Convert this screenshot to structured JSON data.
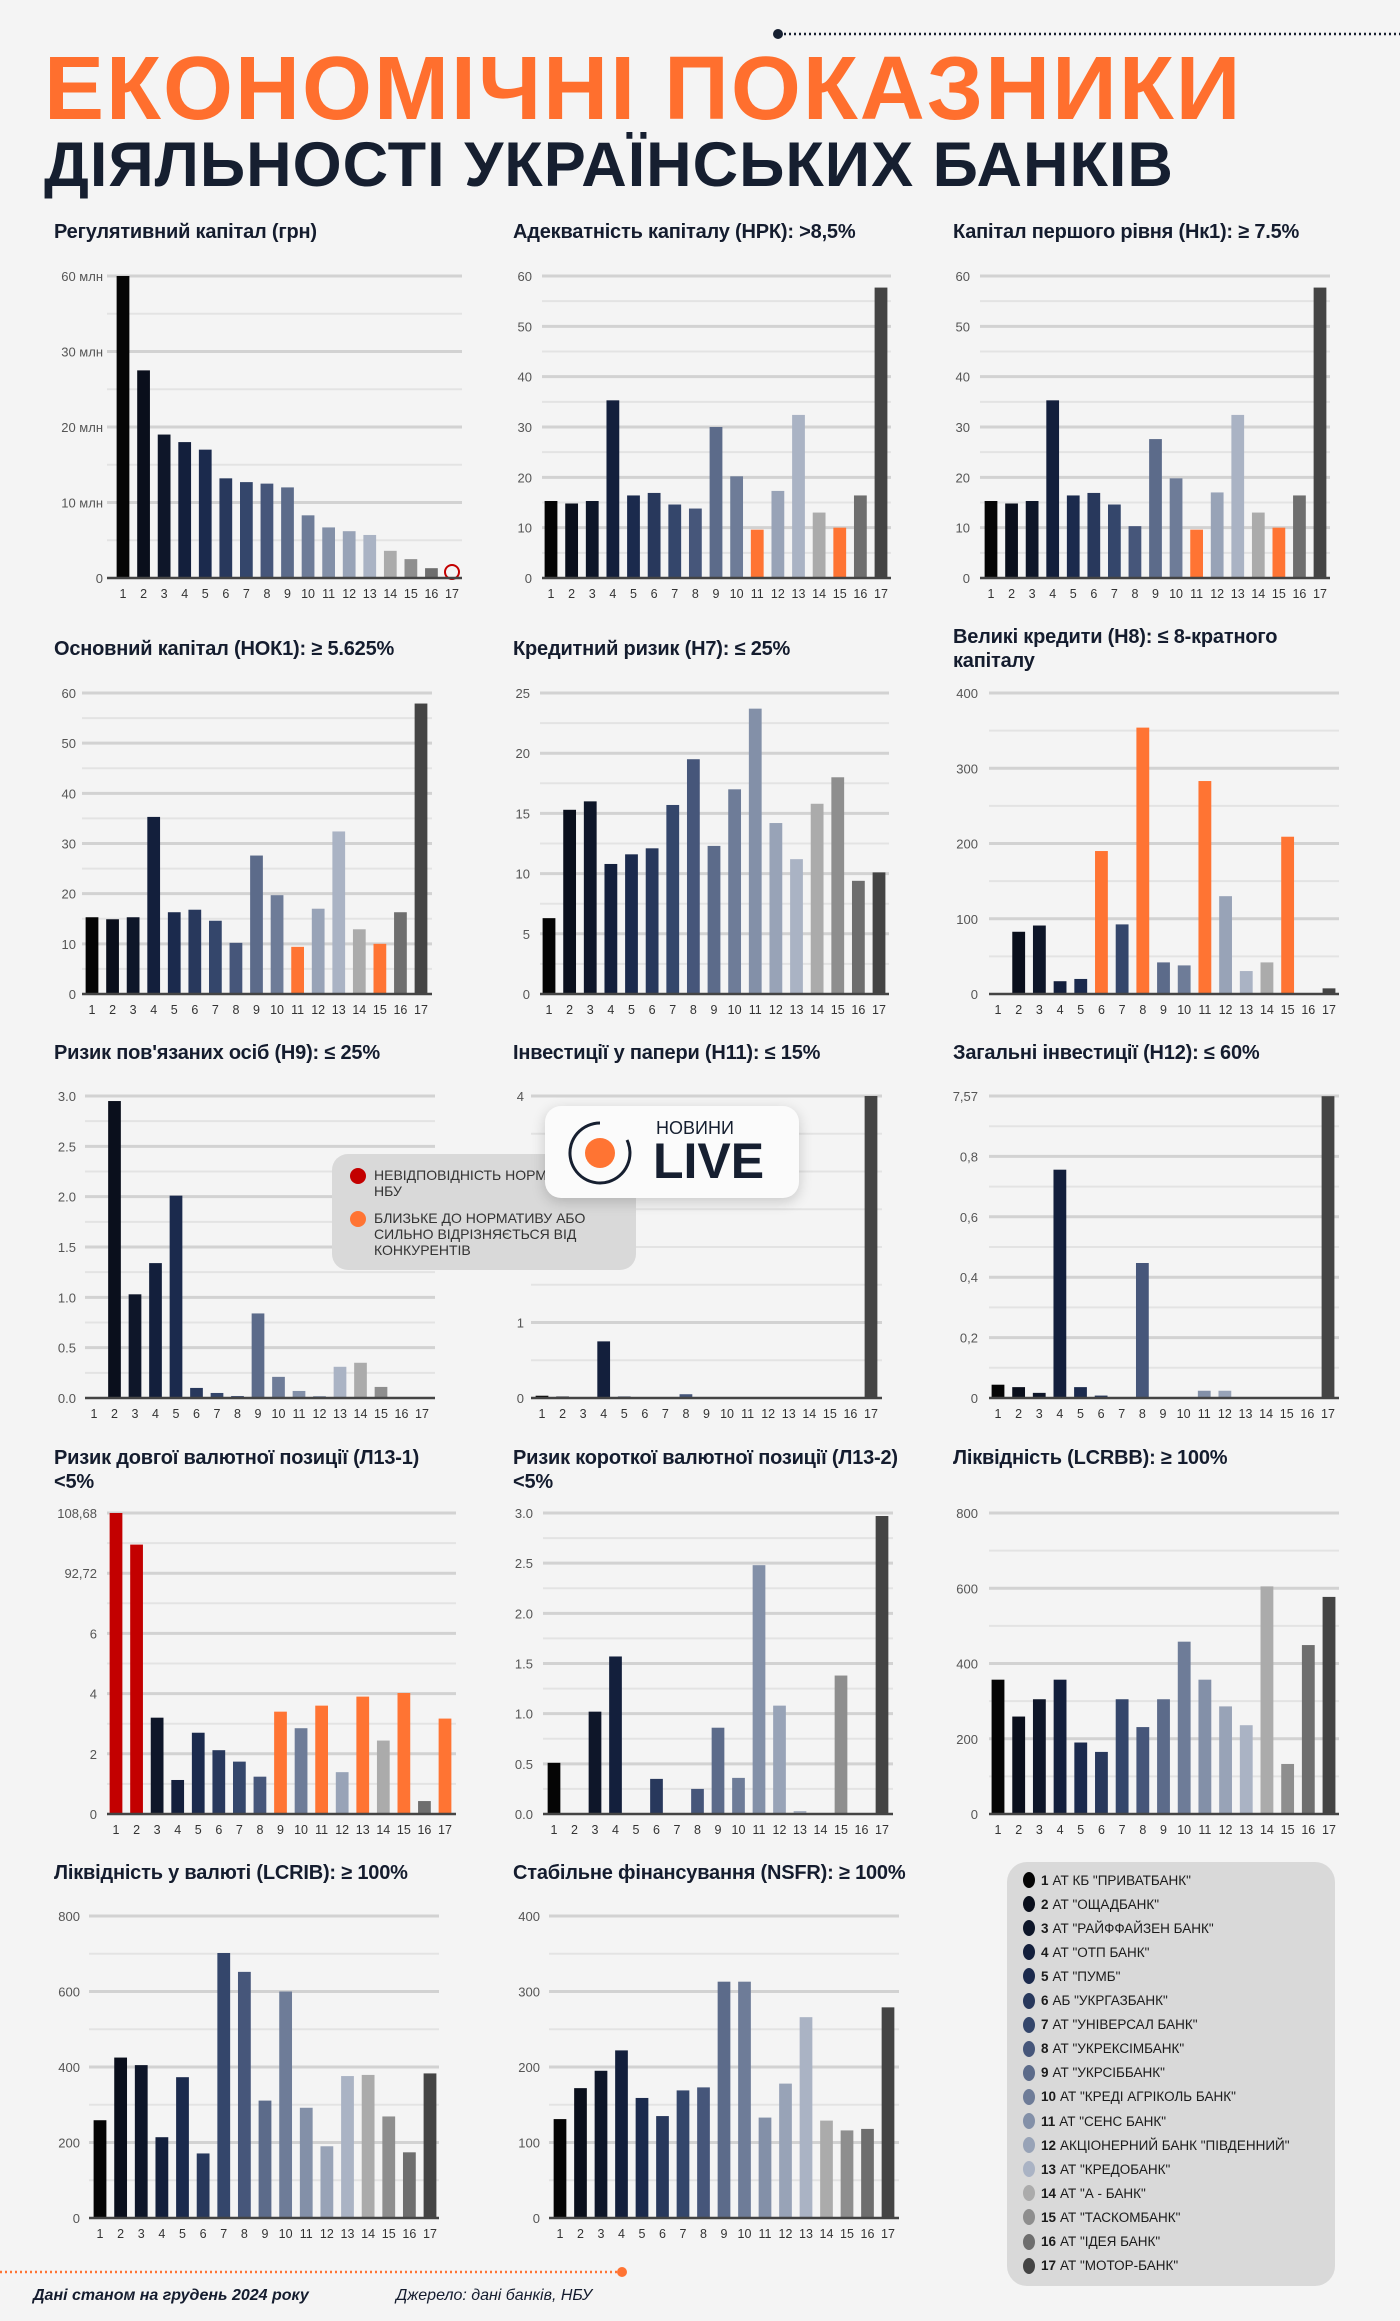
{
  "header": {
    "title_line1": "ЕКОНОМІЧНІ ПОКАЗНИКИ",
    "title_line2": "ДІЯЛЬНОСТІ УКРАЇНСЬКИХ БАНКІВ"
  },
  "colors": {
    "title_orange": "#ff6f2e",
    "navy": "#161f30",
    "orange": "#ff7433",
    "red": "#c30000",
    "bank_colors": [
      "#050505",
      "#0a0f1c",
      "#0e1629",
      "#131f3c",
      "#1b2a4d",
      "#28385c",
      "#34466b",
      "#46567a",
      "#5c6b8a",
      "#6e7c98",
      "#8390a8",
      "#98a3b7",
      "#aab3c4",
      "#ababab",
      "#8e8e8e",
      "#6e6e6e",
      "#444444"
    ]
  },
  "status_legend": [
    {
      "color": "#c30000",
      "label": "НЕВІДПОВІДНІСТЬ НОРМАТИВУ НБУ"
    },
    {
      "color": "#ff7433",
      "label": "БЛИЗЬКЕ ДО НОРМАТИВУ АБО СИЛЬНО ВІДРІЗНЯЄТЬСЯ ВІД КОНКУРЕНТІВ"
    }
  ],
  "logo": {
    "top": "НОВИНИ",
    "main": "LIVE"
  },
  "banks": [
    {
      "num": "1",
      "name": "АТ КБ \"ПРИВАТБАНК\""
    },
    {
      "num": "2",
      "name": "АТ \"ОЩАДБАНК\""
    },
    {
      "num": "3",
      "name": "АТ \"РАЙФФАЙЗЕН БАНК\""
    },
    {
      "num": "4",
      "name": "АТ \"ОТП БАНК\""
    },
    {
      "num": "5",
      "name": "АТ \"ПУМБ\""
    },
    {
      "num": "6",
      "name": "АБ \"УКРГАЗБАНК\""
    },
    {
      "num": "7",
      "name": "АТ \"УНІВЕРСАЛ БАНК\""
    },
    {
      "num": "8",
      "name": "АТ \"УКРЕКСІМБАНК\""
    },
    {
      "num": "9",
      "name": "АТ \"УКРСІББАНК\""
    },
    {
      "num": "10",
      "name": "АТ \"КРЕДІ АГРІКОЛЬ БАНК\""
    },
    {
      "num": "11",
      "name": "АТ \"СЕНС БАНК\""
    },
    {
      "num": "12",
      "name": "АКЦІОНЕРНИЙ БАНК \"ПІВДЕННИЙ\""
    },
    {
      "num": "13",
      "name": "АТ \"КРЕДОБАНК\""
    },
    {
      "num": "14",
      "name": "АТ \"А - БАНК\""
    },
    {
      "num": "15",
      "name": "АТ \"ТАСКОМБАНК\""
    },
    {
      "num": "16",
      "name": "АТ \"ІДЕЯ БАНК\""
    },
    {
      "num": "17",
      "name": "АТ \"МОТОР-БАНК\""
    }
  ],
  "footer": {
    "date_note": "Дані станом на грудень 2024 року",
    "source": "Джерело: дані банків, НБУ"
  },
  "chart_data": [
    {
      "type": "bar",
      "title": "Регулятивний капітал (грн)",
      "categories": [
        "1",
        "2",
        "3",
        "4",
        "5",
        "6",
        "7",
        "8",
        "9",
        "10",
        "11",
        "12",
        "13",
        "14",
        "15",
        "16",
        "17"
      ],
      "values": [
        60,
        27.5,
        19.0,
        18.0,
        17.0,
        13.2,
        12.7,
        12.5,
        12.0,
        8.3,
        6.7,
        6.2,
        5.7,
        3.6,
        2.5,
        1.3,
        0.1
      ],
      "unit": "млн",
      "scale": "broken",
      "ticks": [
        "0",
        "10 млн",
        "20 млн",
        "30 млн",
        "60 млн"
      ],
      "tick_values": [
        0,
        10,
        20,
        30,
        60
      ],
      "ylim": [
        0,
        60
      ],
      "highlight": {
        "orange": [],
        "red": []
      },
      "flagged": [
        17
      ],
      "grid": true
    },
    {
      "type": "bar",
      "title": "Адекватність капіталу (НРК): >8,5%",
      "categories": [
        "1",
        "2",
        "3",
        "4",
        "5",
        "6",
        "7",
        "8",
        "9",
        "10",
        "11",
        "12",
        "13",
        "14",
        "15",
        "16",
        "17"
      ],
      "values": [
        15.3,
        14.8,
        15.3,
        35.3,
        16.4,
        16.9,
        14.6,
        13.8,
        30.0,
        20.2,
        9.6,
        17.3,
        32.4,
        13.0,
        10.0,
        16.4,
        57.7
      ],
      "scale": "linear",
      "ticks": [
        "0",
        "10",
        "20",
        "30",
        "40",
        "50",
        "60"
      ],
      "tick_values": [
        0,
        10,
        20,
        30,
        40,
        50,
        60
      ],
      "ylim": [
        0,
        60
      ],
      "highlight": {
        "orange": [
          11,
          15
        ],
        "red": []
      },
      "grid": true
    },
    {
      "type": "bar",
      "title": "Капітал першого рівня (Нк1): ≥ 7.5%",
      "categories": [
        "1",
        "2",
        "3",
        "4",
        "5",
        "6",
        "7",
        "8",
        "9",
        "10",
        "11",
        "12",
        "13",
        "14",
        "15",
        "16",
        "17"
      ],
      "values": [
        15.3,
        14.8,
        15.3,
        35.3,
        16.4,
        16.9,
        14.6,
        10.3,
        27.6,
        19.8,
        9.6,
        17.0,
        32.4,
        13.0,
        10.0,
        16.4,
        57.7
      ],
      "scale": "linear",
      "ticks": [
        "0",
        "10",
        "20",
        "30",
        "40",
        "50",
        "60"
      ],
      "tick_values": [
        0,
        10,
        20,
        30,
        40,
        50,
        60
      ],
      "ylim": [
        0,
        60
      ],
      "highlight": {
        "orange": [
          11,
          15
        ],
        "red": []
      },
      "grid": true
    },
    {
      "type": "bar",
      "title": "Основний капітал (НОК1): ≥ 5.625%",
      "categories": [
        "1",
        "2",
        "3",
        "4",
        "5",
        "6",
        "7",
        "8",
        "9",
        "10",
        "11",
        "12",
        "13",
        "14",
        "15",
        "16",
        "17"
      ],
      "values": [
        15.3,
        14.9,
        15.3,
        35.3,
        16.3,
        16.8,
        14.6,
        10.2,
        27.6,
        19.7,
        9.4,
        17.0,
        32.4,
        12.9,
        10.0,
        16.3,
        57.9
      ],
      "scale": "linear",
      "ticks": [
        "0",
        "10",
        "20",
        "30",
        "40",
        "50",
        "60"
      ],
      "tick_values": [
        0,
        10,
        20,
        30,
        40,
        50,
        60
      ],
      "ylim": [
        0,
        60
      ],
      "highlight": {
        "orange": [
          11,
          15
        ],
        "red": []
      },
      "grid": true
    },
    {
      "type": "bar",
      "title": "Кредитний ризик (Н7): ≤ 25%",
      "categories": [
        "1",
        "2",
        "3",
        "4",
        "5",
        "6",
        "7",
        "8",
        "9",
        "10",
        "11",
        "12",
        "13",
        "14",
        "15",
        "16",
        "17"
      ],
      "values": [
        6.3,
        15.3,
        16.0,
        10.8,
        11.6,
        12.1,
        15.7,
        19.5,
        12.3,
        17.0,
        23.7,
        14.2,
        11.2,
        15.8,
        18.0,
        9.4,
        10.1
      ],
      "scale": "linear",
      "ticks": [
        "0",
        "5",
        "10",
        "15",
        "20",
        "25"
      ],
      "tick_values": [
        0,
        5,
        10,
        15,
        20,
        25
      ],
      "ylim": [
        0,
        25
      ],
      "highlight": {
        "orange": [],
        "red": []
      },
      "grid": true
    },
    {
      "type": "bar",
      "title": "Великі кредити (Н8): ≤ 8-кратного капіталу",
      "categories": [
        "1",
        "2",
        "3",
        "4",
        "5",
        "6",
        "7",
        "8",
        "9",
        "10",
        "11",
        "12",
        "13",
        "14",
        "15",
        "16",
        "17"
      ],
      "values": [
        0,
        82.7,
        91,
        17,
        20,
        190,
        92.5,
        354,
        42,
        38,
        283,
        130,
        30.5,
        42,
        209,
        0,
        7.5
      ],
      "scale": "linear",
      "ticks": [
        "0",
        "100",
        "200",
        "300",
        "400"
      ],
      "tick_values": [
        0,
        100,
        200,
        300,
        400
      ],
      "ylim": [
        0,
        400
      ],
      "highlight": {
        "orange": [
          6,
          8,
          11,
          15
        ],
        "red": []
      },
      "grid": true
    },
    {
      "type": "bar",
      "title": "Ризик пов'язаних осіб (Н9): ≤ 25%",
      "categories": [
        "1",
        "2",
        "3",
        "4",
        "5",
        "6",
        "7",
        "8",
        "9",
        "10",
        "11",
        "12",
        "13",
        "14",
        "15",
        "16",
        "17"
      ],
      "values": [
        0,
        2.95,
        1.03,
        1.34,
        2.01,
        0.1,
        0.05,
        0.02,
        0.84,
        0.21,
        0.07,
        0.02,
        0.31,
        0.35,
        0.11,
        0,
        0
      ],
      "scale": "linear",
      "ticks": [
        "0.0",
        "0.5",
        "1.0",
        "1.5",
        "2.0",
        "2.5",
        "3.0"
      ],
      "tick_values": [
        0,
        0.5,
        1,
        1.5,
        2,
        2.5,
        3
      ],
      "ylim": [
        0,
        3
      ],
      "highlight": {
        "orange": [],
        "red": []
      },
      "grid": true
    },
    {
      "type": "bar",
      "title": "Інвестиції у папери (Н11): ≤ 15%",
      "categories": [
        "1",
        "2",
        "3",
        "4",
        "5",
        "6",
        "7",
        "8",
        "9",
        "10",
        "11",
        "12",
        "13",
        "14",
        "15",
        "16",
        "17"
      ],
      "values": [
        0.03,
        0.02,
        0,
        0.75,
        0.02,
        0,
        0,
        0.05,
        0,
        0,
        0,
        0,
        0,
        0,
        0,
        0,
        4.0
      ],
      "scale": "linear",
      "ticks": [
        "0",
        "1",
        "4"
      ],
      "tick_values": [
        0,
        1,
        4
      ],
      "ylim": [
        0,
        4
      ],
      "highlight": {
        "orange": [],
        "red": []
      },
      "grid": true
    },
    {
      "type": "bar",
      "title": "Загальні інвестиції (Н12): ≤ 60%",
      "categories": [
        "1",
        "2",
        "3",
        "4",
        "5",
        "6",
        "7",
        "8",
        "9",
        "10",
        "11",
        "12",
        "13",
        "14",
        "15",
        "16",
        "17"
      ],
      "values": [
        0.044,
        0.036,
        0.017,
        0.756,
        0.036,
        0.008,
        0,
        0.447,
        0,
        0,
        0.024,
        0.024,
        0,
        0,
        0,
        0,
        7.55
      ],
      "scale": "broken",
      "ticks": [
        "0",
        "0,2",
        "0,4",
        "0,6",
        "0,8",
        "7,57"
      ],
      "tick_values": [
        0,
        0.2,
        0.4,
        0.6,
        0.8,
        7.57
      ],
      "ylim": [
        0,
        7.57
      ],
      "highlight": {
        "orange": [],
        "red": []
      },
      "grid": true
    },
    {
      "type": "bar",
      "title": "Ризик довгої валютної позиції (Л13-1) <5%",
      "categories": [
        "1",
        "2",
        "3",
        "4",
        "5",
        "6",
        "7",
        "8",
        "9",
        "10",
        "11",
        "12",
        "13",
        "14",
        "15",
        "16",
        "17"
      ],
      "values": [
        108.68,
        100.3,
        3.2,
        1.13,
        2.7,
        2.12,
        1.74,
        1.24,
        3.4,
        2.85,
        3.6,
        1.39,
        3.9,
        2.44,
        4.02,
        0.43,
        3.17
      ],
      "scale": "broken",
      "ticks": [
        "0",
        "2",
        "4",
        "6",
        "92,72",
        "108,68"
      ],
      "tick_values": [
        0,
        2,
        4,
        6,
        92.72,
        108.68
      ],
      "ylim": [
        0,
        108.68
      ],
      "highlight": {
        "orange": [
          9,
          11,
          13,
          15,
          17
        ],
        "red": [
          1,
          2
        ]
      },
      "grid": true
    },
    {
      "type": "bar",
      "title": "Ризик короткої валютної позиції (Л13-2) <5%",
      "categories": [
        "1",
        "2",
        "3",
        "4",
        "5",
        "6",
        "7",
        "8",
        "9",
        "10",
        "11",
        "12",
        "13",
        "14",
        "15",
        "16",
        "17"
      ],
      "values": [
        0.51,
        0.01,
        1.02,
        1.57,
        0,
        0.35,
        0,
        0.25,
        0.86,
        0.36,
        2.48,
        1.08,
        0.03,
        0,
        1.38,
        0,
        2.97
      ],
      "scale": "linear",
      "ticks": [
        "0.0",
        "0.5",
        "1.0",
        "1.5",
        "2.0",
        "2.5",
        "3.0"
      ],
      "tick_values": [
        0,
        0.5,
        1,
        1.5,
        2,
        2.5,
        3
      ],
      "ylim": [
        0,
        3
      ],
      "highlight": {
        "orange": [],
        "red": []
      },
      "grid": true
    },
    {
      "type": "bar",
      "title": "Ліквідність (LCRBB): ≥ 100%",
      "categories": [
        "1",
        "2",
        "3",
        "4",
        "5",
        "6",
        "7",
        "8",
        "9",
        "10",
        "11",
        "12",
        "13",
        "14",
        "15",
        "16",
        "17"
      ],
      "values": [
        357,
        259,
        305,
        357,
        190,
        165,
        305,
        231,
        305,
        458,
        357,
        286,
        236,
        605,
        133,
        449,
        577
      ],
      "scale": "linear",
      "ticks": [
        "0",
        "200",
        "400",
        "600",
        "800"
      ],
      "tick_values": [
        0,
        200,
        400,
        600,
        800
      ],
      "ylim": [
        0,
        800
      ],
      "highlight": {
        "orange": [],
        "red": []
      },
      "grid": true
    },
    {
      "type": "bar",
      "title": "Ліквідність у валюті (LCRIB): ≥ 100%",
      "categories": [
        "1",
        "2",
        "3",
        "4",
        "5",
        "6",
        "7",
        "8",
        "9",
        "10",
        "11",
        "12",
        "13",
        "14",
        "15",
        "16",
        "17"
      ],
      "values": [
        259,
        425,
        405,
        214,
        373,
        171,
        702,
        652,
        311,
        600,
        292,
        190,
        376,
        379,
        269,
        174,
        383
      ],
      "scale": "linear",
      "ticks": [
        "0",
        "200",
        "400",
        "600",
        "800"
      ],
      "tick_values": [
        0,
        200,
        400,
        600,
        800
      ],
      "ylim": [
        0,
        800
      ],
      "highlight": {
        "orange": [],
        "red": []
      },
      "grid": true
    },
    {
      "type": "bar",
      "title": "Стабільне фінансування (NSFR): ≥ 100%",
      "categories": [
        "1",
        "2",
        "3",
        "4",
        "5",
        "6",
        "7",
        "8",
        "9",
        "10",
        "11",
        "12",
        "13",
        "14",
        "15",
        "16",
        "17"
      ],
      "values": [
        131,
        172,
        195,
        222,
        159,
        135,
        169,
        173,
        313,
        313,
        133,
        178,
        266,
        129,
        116,
        118,
        279
      ],
      "scale": "linear",
      "ticks": [
        "0",
        "100",
        "200",
        "300",
        "400"
      ],
      "tick_values": [
        0,
        100,
        200,
        300,
        400
      ],
      "ylim": [
        0,
        400
      ],
      "highlight": {
        "orange": [],
        "red": []
      },
      "grid": true
    }
  ]
}
